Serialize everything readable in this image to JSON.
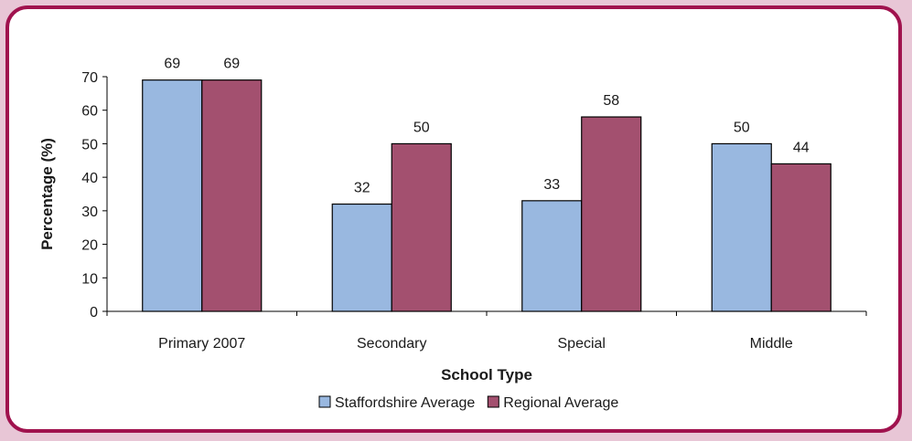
{
  "chart_data": {
    "type": "bar",
    "title": "",
    "xlabel": "School Type",
    "ylabel": "Percentage (%)",
    "ylim": [
      0,
      70
    ],
    "yticks": [
      0,
      10,
      20,
      30,
      40,
      50,
      60,
      70
    ],
    "grid": false,
    "legend_position": "bottom",
    "categories": [
      "Primary 2007",
      "Secondary",
      "Special",
      "Middle"
    ],
    "series": [
      {
        "name": "Staffordshire Average",
        "color": "#99b8e0",
        "values": [
          69,
          32,
          33,
          50
        ]
      },
      {
        "name": "Regional Average",
        "color": "#a3506f",
        "values": [
          69,
          50,
          58,
          44
        ]
      }
    ],
    "data_labels": true
  },
  "colors": {
    "frame_border": "#a0124e",
    "page_background": "#e8c6d6"
  }
}
